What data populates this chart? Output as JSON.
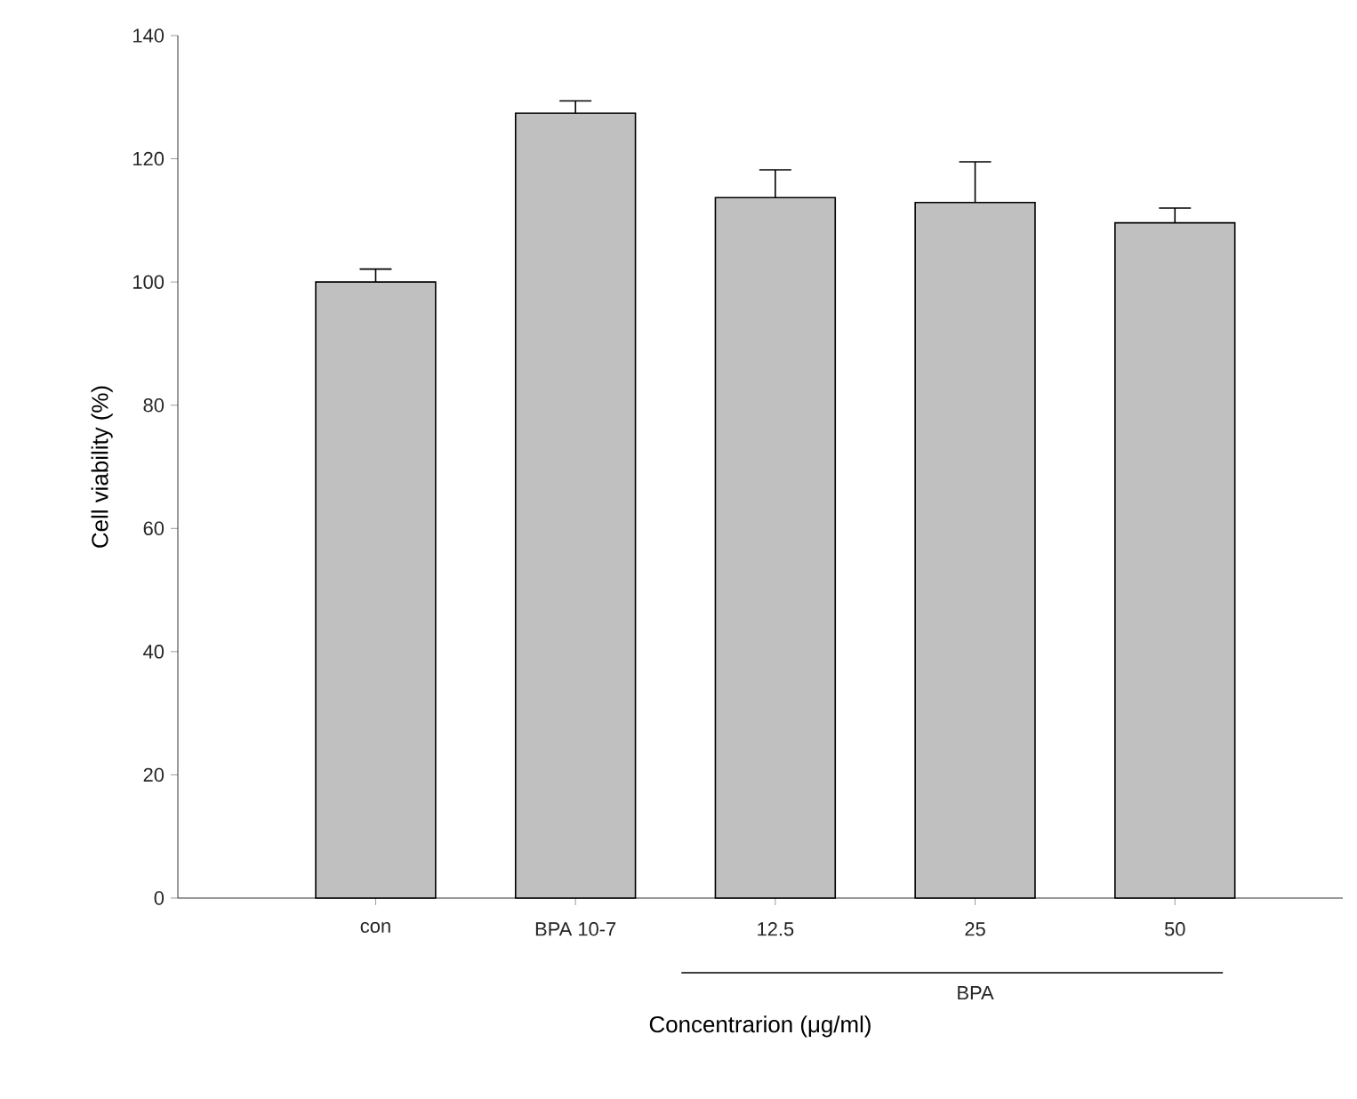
{
  "chart_data": {
    "type": "bar",
    "xlabel": "Concentrarion (μg/ml)",
    "ylabel": "Cell viability (%)",
    "categories": [
      "con",
      "BPA 10-7",
      "12.5",
      "25",
      "50"
    ],
    "values": [
      100,
      127.4,
      113.7,
      112.9,
      109.6
    ],
    "errors": [
      [
        100,
        102.1
      ],
      [
        127.4,
        129.4
      ],
      [
        113.7,
        118.2
      ],
      [
        112.9,
        119.5
      ],
      [
        109.6,
        112.0
      ]
    ],
    "color": "#c0c0c0",
    "ylim": [
      0,
      140
    ],
    "yticks": [
      0,
      20,
      40,
      60,
      80,
      100,
      120,
      140
    ],
    "annotations": [
      "BPA"
    ],
    "grid": false
  }
}
